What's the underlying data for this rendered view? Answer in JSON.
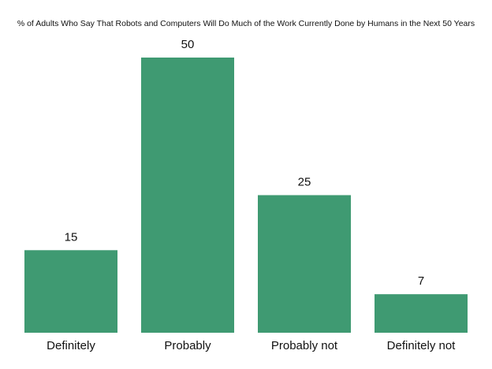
{
  "chart_data": {
    "type": "bar",
    "title": "% of Adults Who Say That Robots and Computers Will Do Much of the Work Currently Done by Humans in the Next 50 Years",
    "categories": [
      "Definitely",
      "Probably",
      "Probably not",
      "Definitely not"
    ],
    "values": [
      15,
      50,
      25,
      7
    ],
    "color": "#3f9a72"
  }
}
